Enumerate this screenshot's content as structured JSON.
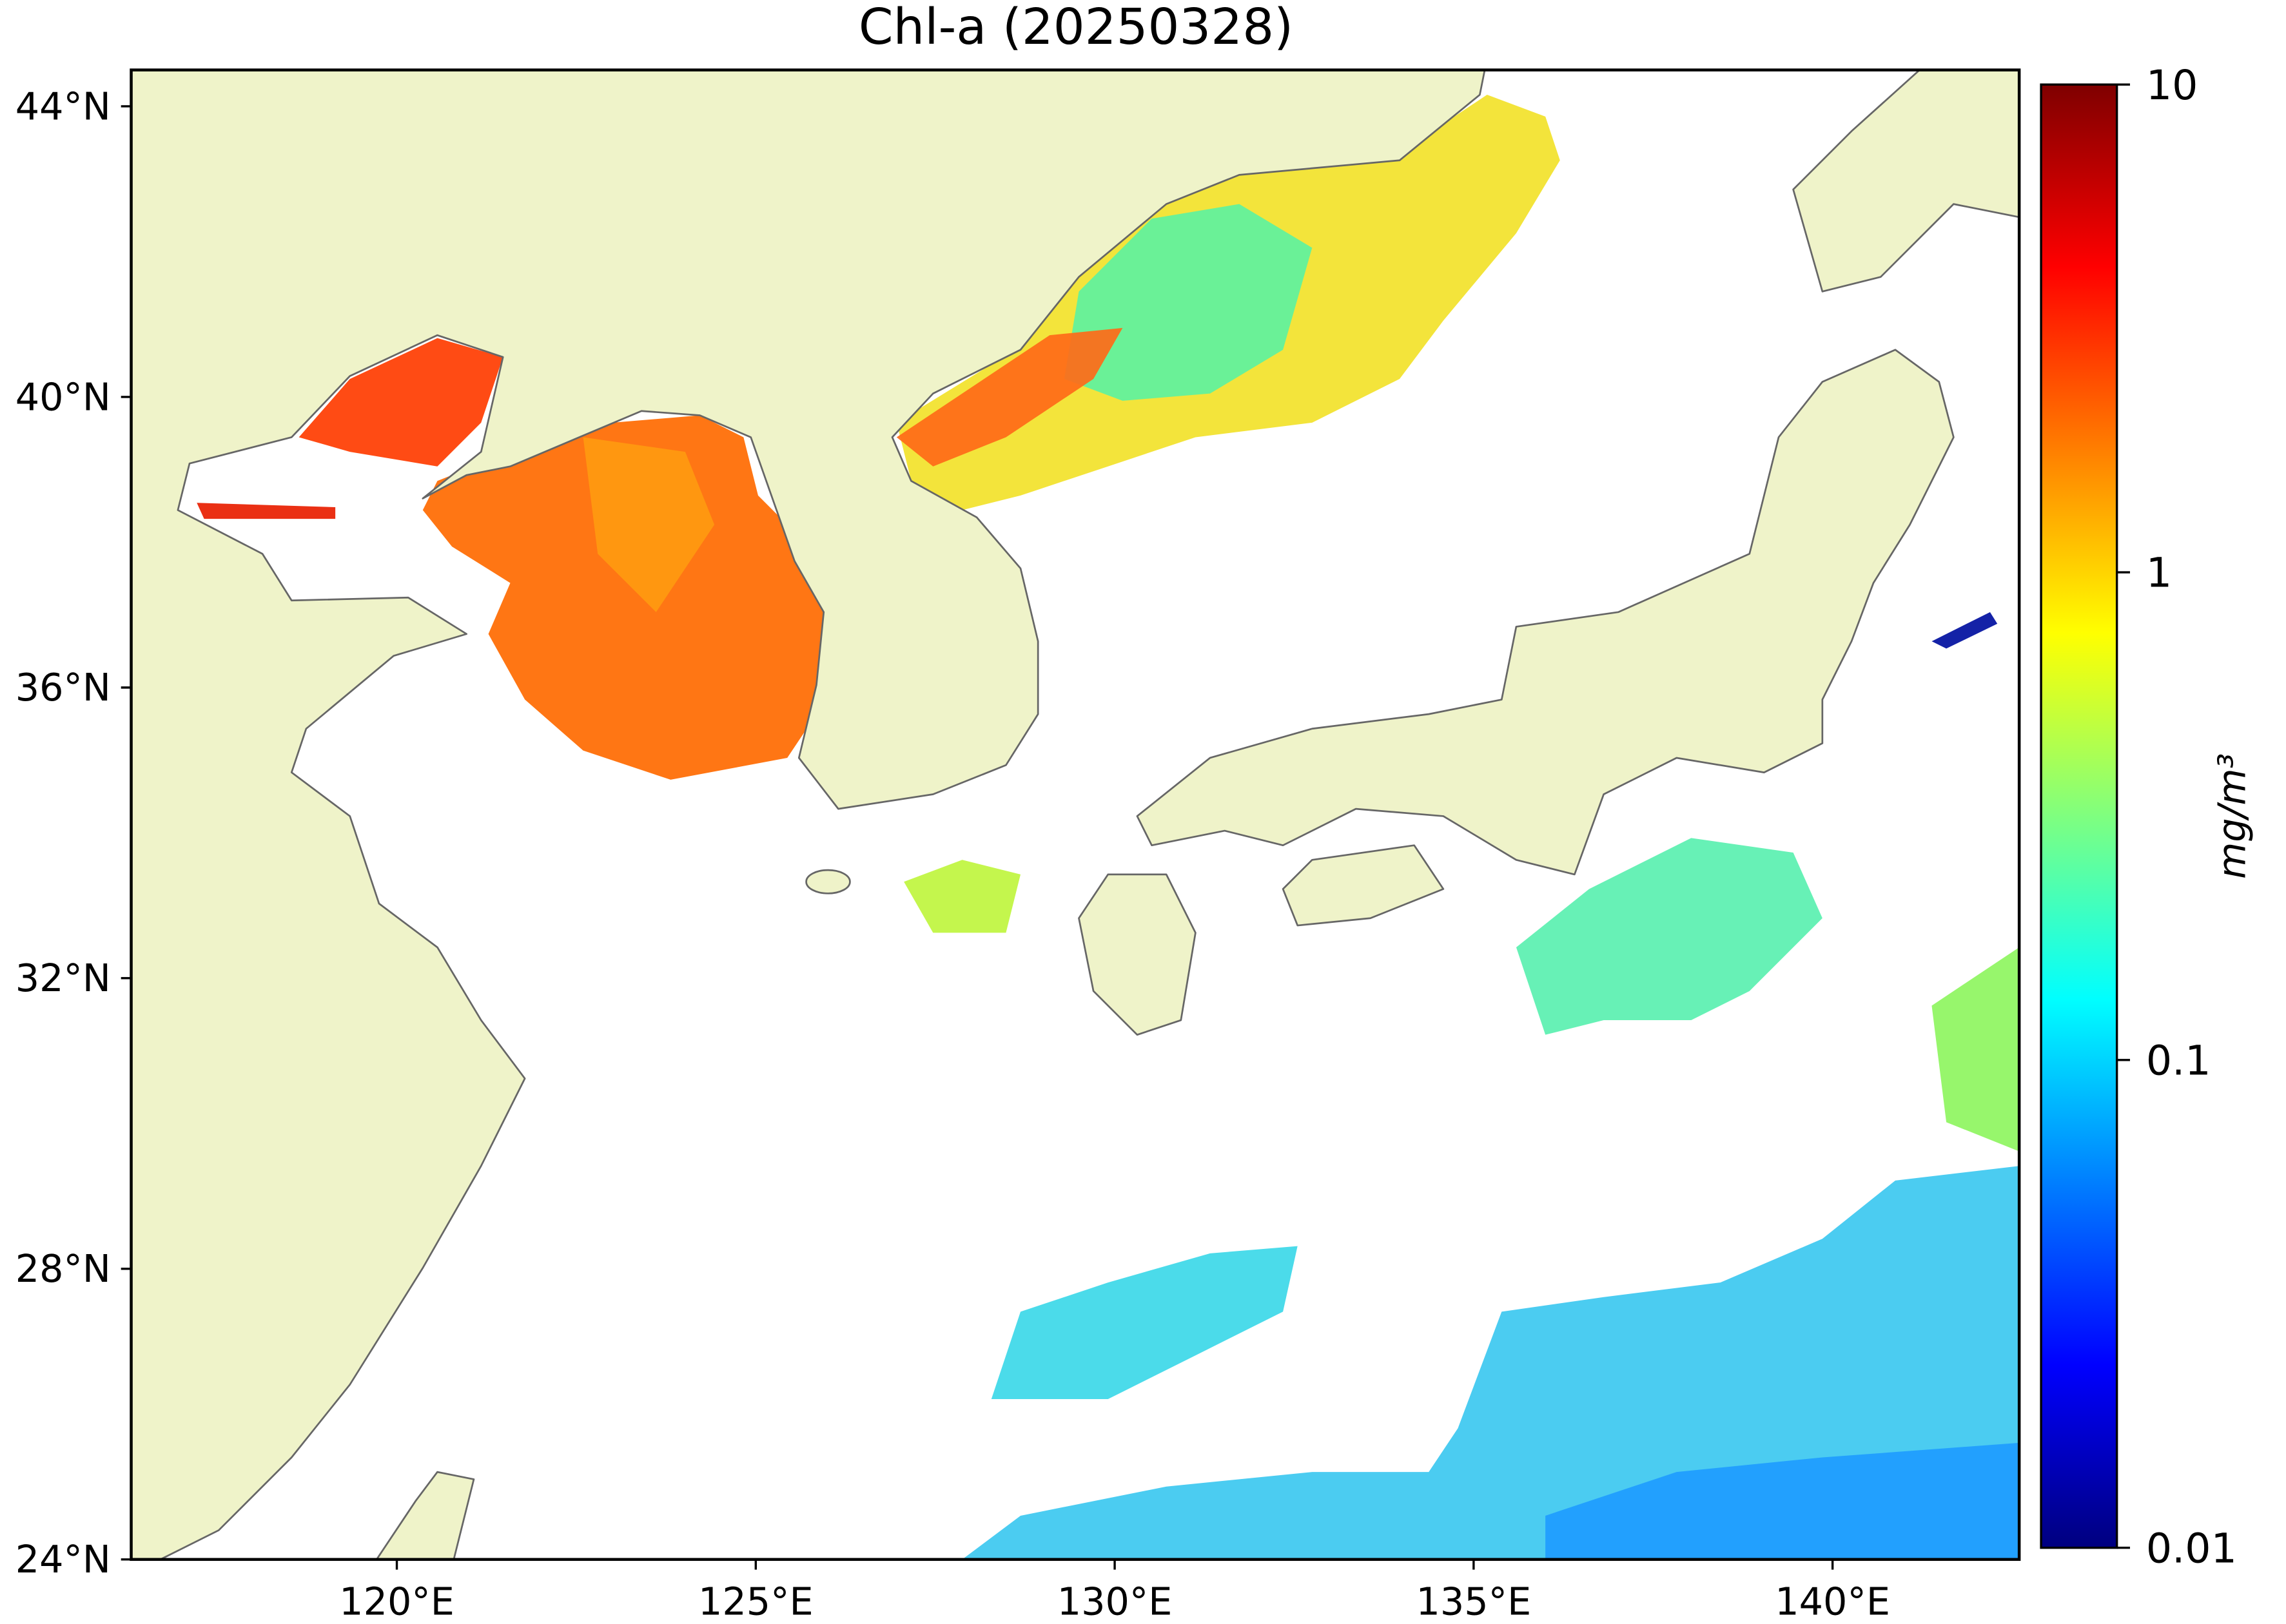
{
  "chart_data": {
    "type": "map",
    "title": "Chl-a (20250328)",
    "xlim": [
      116.3,
      142.6
    ],
    "ylim": [
      24,
      44.5
    ],
    "xticks": [
      {
        "value": 120,
        "label": "120°E"
      },
      {
        "value": 125,
        "label": "125°E"
      },
      {
        "value": 130,
        "label": "130°E"
      },
      {
        "value": 135,
        "label": "135°E"
      },
      {
        "value": 140,
        "label": "140°E"
      }
    ],
    "yticks": [
      {
        "value": 24,
        "label": "24°N"
      },
      {
        "value": 28,
        "label": "28°N"
      },
      {
        "value": 32,
        "label": "32°N"
      },
      {
        "value": 36,
        "label": "36°N"
      },
      {
        "value": 40,
        "label": "40°N"
      },
      {
        "value": 44,
        "label": "44°N"
      }
    ],
    "land_color": "#eff3c9",
    "colorbar": {
      "label": "mg/m³",
      "colormap": "jet",
      "scale": "log",
      "lim": [
        0.01,
        10
      ],
      "ticks": [
        0.01,
        0.1,
        1,
        10
      ]
    }
  }
}
